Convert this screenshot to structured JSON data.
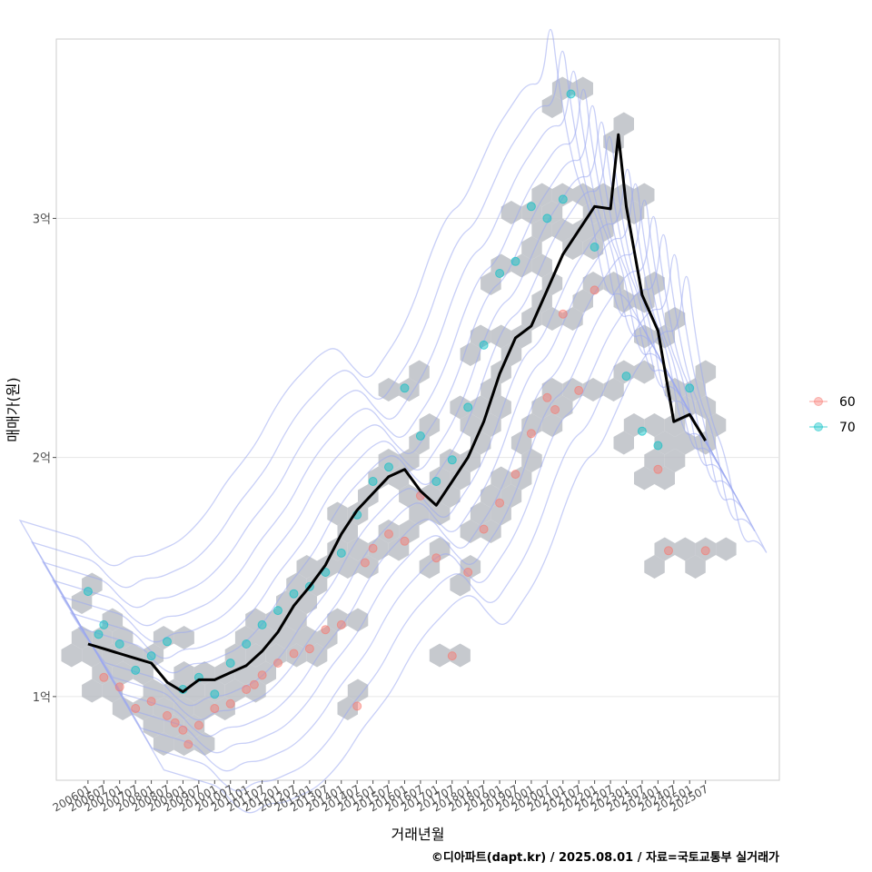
{
  "chart_data": {
    "type": "scatter",
    "title": "",
    "xlabel": "거래년월",
    "ylabel": "매매가(원)",
    "caption": "©디아파트(dapt.kr) / 2025.08.01 / 자료=국토교통부 실거래가",
    "x_ticks": [
      "200601",
      "200607",
      "200701",
      "200707",
      "200801",
      "200807",
      "200901",
      "200907",
      "201001",
      "201007",
      "201101",
      "201107",
      "201201",
      "201207",
      "201301",
      "201307",
      "201401",
      "201407",
      "201501",
      "201507",
      "201601",
      "201607",
      "201701",
      "201707",
      "201801",
      "201807",
      "201901",
      "201907",
      "202001",
      "202007",
      "202101",
      "202107",
      "202201",
      "202207",
      "202301",
      "202307",
      "202401",
      "202407",
      "202501",
      "202507"
    ],
    "y_ticks": [
      {
        "value": 100000000,
        "label": "1억"
      },
      {
        "value": 200000000,
        "label": "2억"
      },
      {
        "value": 300000000,
        "label": "3억"
      }
    ],
    "ylim": [
      65000000,
      375000000
    ],
    "xlim_months": [
      "200501",
      "202711"
    ],
    "grid": true,
    "legend": {
      "position": "right",
      "entries": [
        {
          "name": "60",
          "color": "#F8766D"
        },
        {
          "name": "70",
          "color": "#00BFC4"
        }
      ]
    },
    "layers": [
      "hexbin density",
      "2d density contours",
      "scatter points by area group",
      "median price line"
    ],
    "series": [
      {
        "name": "60",
        "color": "#F8766D",
        "points": [
          [
            "200607",
            108000000
          ],
          [
            "200701",
            104000000
          ],
          [
            "200707",
            95000000
          ],
          [
            "200801",
            98000000
          ],
          [
            "200807",
            92000000
          ],
          [
            "200810",
            89000000
          ],
          [
            "200901",
            86000000
          ],
          [
            "200903",
            80000000
          ],
          [
            "200907",
            88000000
          ],
          [
            "201001",
            95000000
          ],
          [
            "201007",
            97000000
          ],
          [
            "201101",
            103000000
          ],
          [
            "201104",
            105000000
          ],
          [
            "201107",
            109000000
          ],
          [
            "201201",
            114000000
          ],
          [
            "201207",
            118000000
          ],
          [
            "201301",
            120000000
          ],
          [
            "201307",
            128000000
          ],
          [
            "201401",
            130000000
          ],
          [
            "201407",
            96000000
          ],
          [
            "201410",
            156000000
          ],
          [
            "201501",
            162000000
          ],
          [
            "201507",
            168000000
          ],
          [
            "201601",
            165000000
          ],
          [
            "201607",
            184000000
          ],
          [
            "201701",
            158000000
          ],
          [
            "201707",
            117000000
          ],
          [
            "201801",
            152000000
          ],
          [
            "201807",
            170000000
          ],
          [
            "201901",
            181000000
          ],
          [
            "201907",
            193000000
          ],
          [
            "202001",
            210000000
          ],
          [
            "202007",
            225000000
          ],
          [
            "202010",
            220000000
          ],
          [
            "202101",
            260000000
          ],
          [
            "202107",
            228000000
          ],
          [
            "202201",
            270000000
          ],
          [
            "202401",
            195000000
          ],
          [
            "202405",
            161000000
          ],
          [
            "202507",
            161000000
          ]
        ]
      },
      {
        "name": "70",
        "color": "#00BFC4",
        "points": [
          [
            "200601",
            144000000
          ],
          [
            "200605",
            126000000
          ],
          [
            "200607",
            130000000
          ],
          [
            "200701",
            122000000
          ],
          [
            "200707",
            111000000
          ],
          [
            "200801",
            117000000
          ],
          [
            "200807",
            123000000
          ],
          [
            "200901",
            103000000
          ],
          [
            "200907",
            108000000
          ],
          [
            "201001",
            101000000
          ],
          [
            "201007",
            114000000
          ],
          [
            "201101",
            122000000
          ],
          [
            "201107",
            130000000
          ],
          [
            "201201",
            136000000
          ],
          [
            "201207",
            143000000
          ],
          [
            "201301",
            146000000
          ],
          [
            "201307",
            152000000
          ],
          [
            "201401",
            160000000
          ],
          [
            "201407",
            176000000
          ],
          [
            "201501",
            190000000
          ],
          [
            "201507",
            196000000
          ],
          [
            "201601",
            229000000
          ],
          [
            "201607",
            209000000
          ],
          [
            "201701",
            190000000
          ],
          [
            "201707",
            199000000
          ],
          [
            "201801",
            221000000
          ],
          [
            "201807",
            247000000
          ],
          [
            "201901",
            277000000
          ],
          [
            "201907",
            282000000
          ],
          [
            "202001",
            305000000
          ],
          [
            "202007",
            300000000
          ],
          [
            "202101",
            308000000
          ],
          [
            "202104",
            352000000
          ],
          [
            "202201",
            288000000
          ],
          [
            "202301",
            234000000
          ],
          [
            "202307",
            211000000
          ],
          [
            "202401",
            205000000
          ],
          [
            "202501",
            229000000
          ]
        ]
      }
    ],
    "median_line": {
      "color": "#000000",
      "points": [
        [
          "200601",
          122000000
        ],
        [
          "200607",
          120000000
        ],
        [
          "200701",
          118000000
        ],
        [
          "200707",
          116000000
        ],
        [
          "200801",
          114000000
        ],
        [
          "200807",
          106000000
        ],
        [
          "200901",
          102000000
        ],
        [
          "200907",
          107000000
        ],
        [
          "201001",
          107000000
        ],
        [
          "201007",
          110000000
        ],
        [
          "201101",
          113000000
        ],
        [
          "201107",
          119000000
        ],
        [
          "201201",
          127000000
        ],
        [
          "201207",
          138000000
        ],
        [
          "201301",
          146000000
        ],
        [
          "201307",
          155000000
        ],
        [
          "201401",
          168000000
        ],
        [
          "201407",
          178000000
        ],
        [
          "201501",
          185000000
        ],
        [
          "201507",
          192000000
        ],
        [
          "201601",
          195000000
        ],
        [
          "201607",
          186000000
        ],
        [
          "201701",
          180000000
        ],
        [
          "201707",
          190000000
        ],
        [
          "201801",
          200000000
        ],
        [
          "201807",
          215000000
        ],
        [
          "201901",
          235000000
        ],
        [
          "201907",
          250000000
        ],
        [
          "202001",
          255000000
        ],
        [
          "202007",
          270000000
        ],
        [
          "202101",
          285000000
        ],
        [
          "202107",
          295000000
        ],
        [
          "202201",
          305000000
        ],
        [
          "202207",
          304000000
        ],
        [
          "202210",
          335000000
        ],
        [
          "202301",
          305000000
        ],
        [
          "202307",
          268000000
        ],
        [
          "202401",
          253000000
        ],
        [
          "202407",
          215000000
        ],
        [
          "202501",
          218000000
        ],
        [
          "202507",
          207000000
        ]
      ]
    }
  }
}
